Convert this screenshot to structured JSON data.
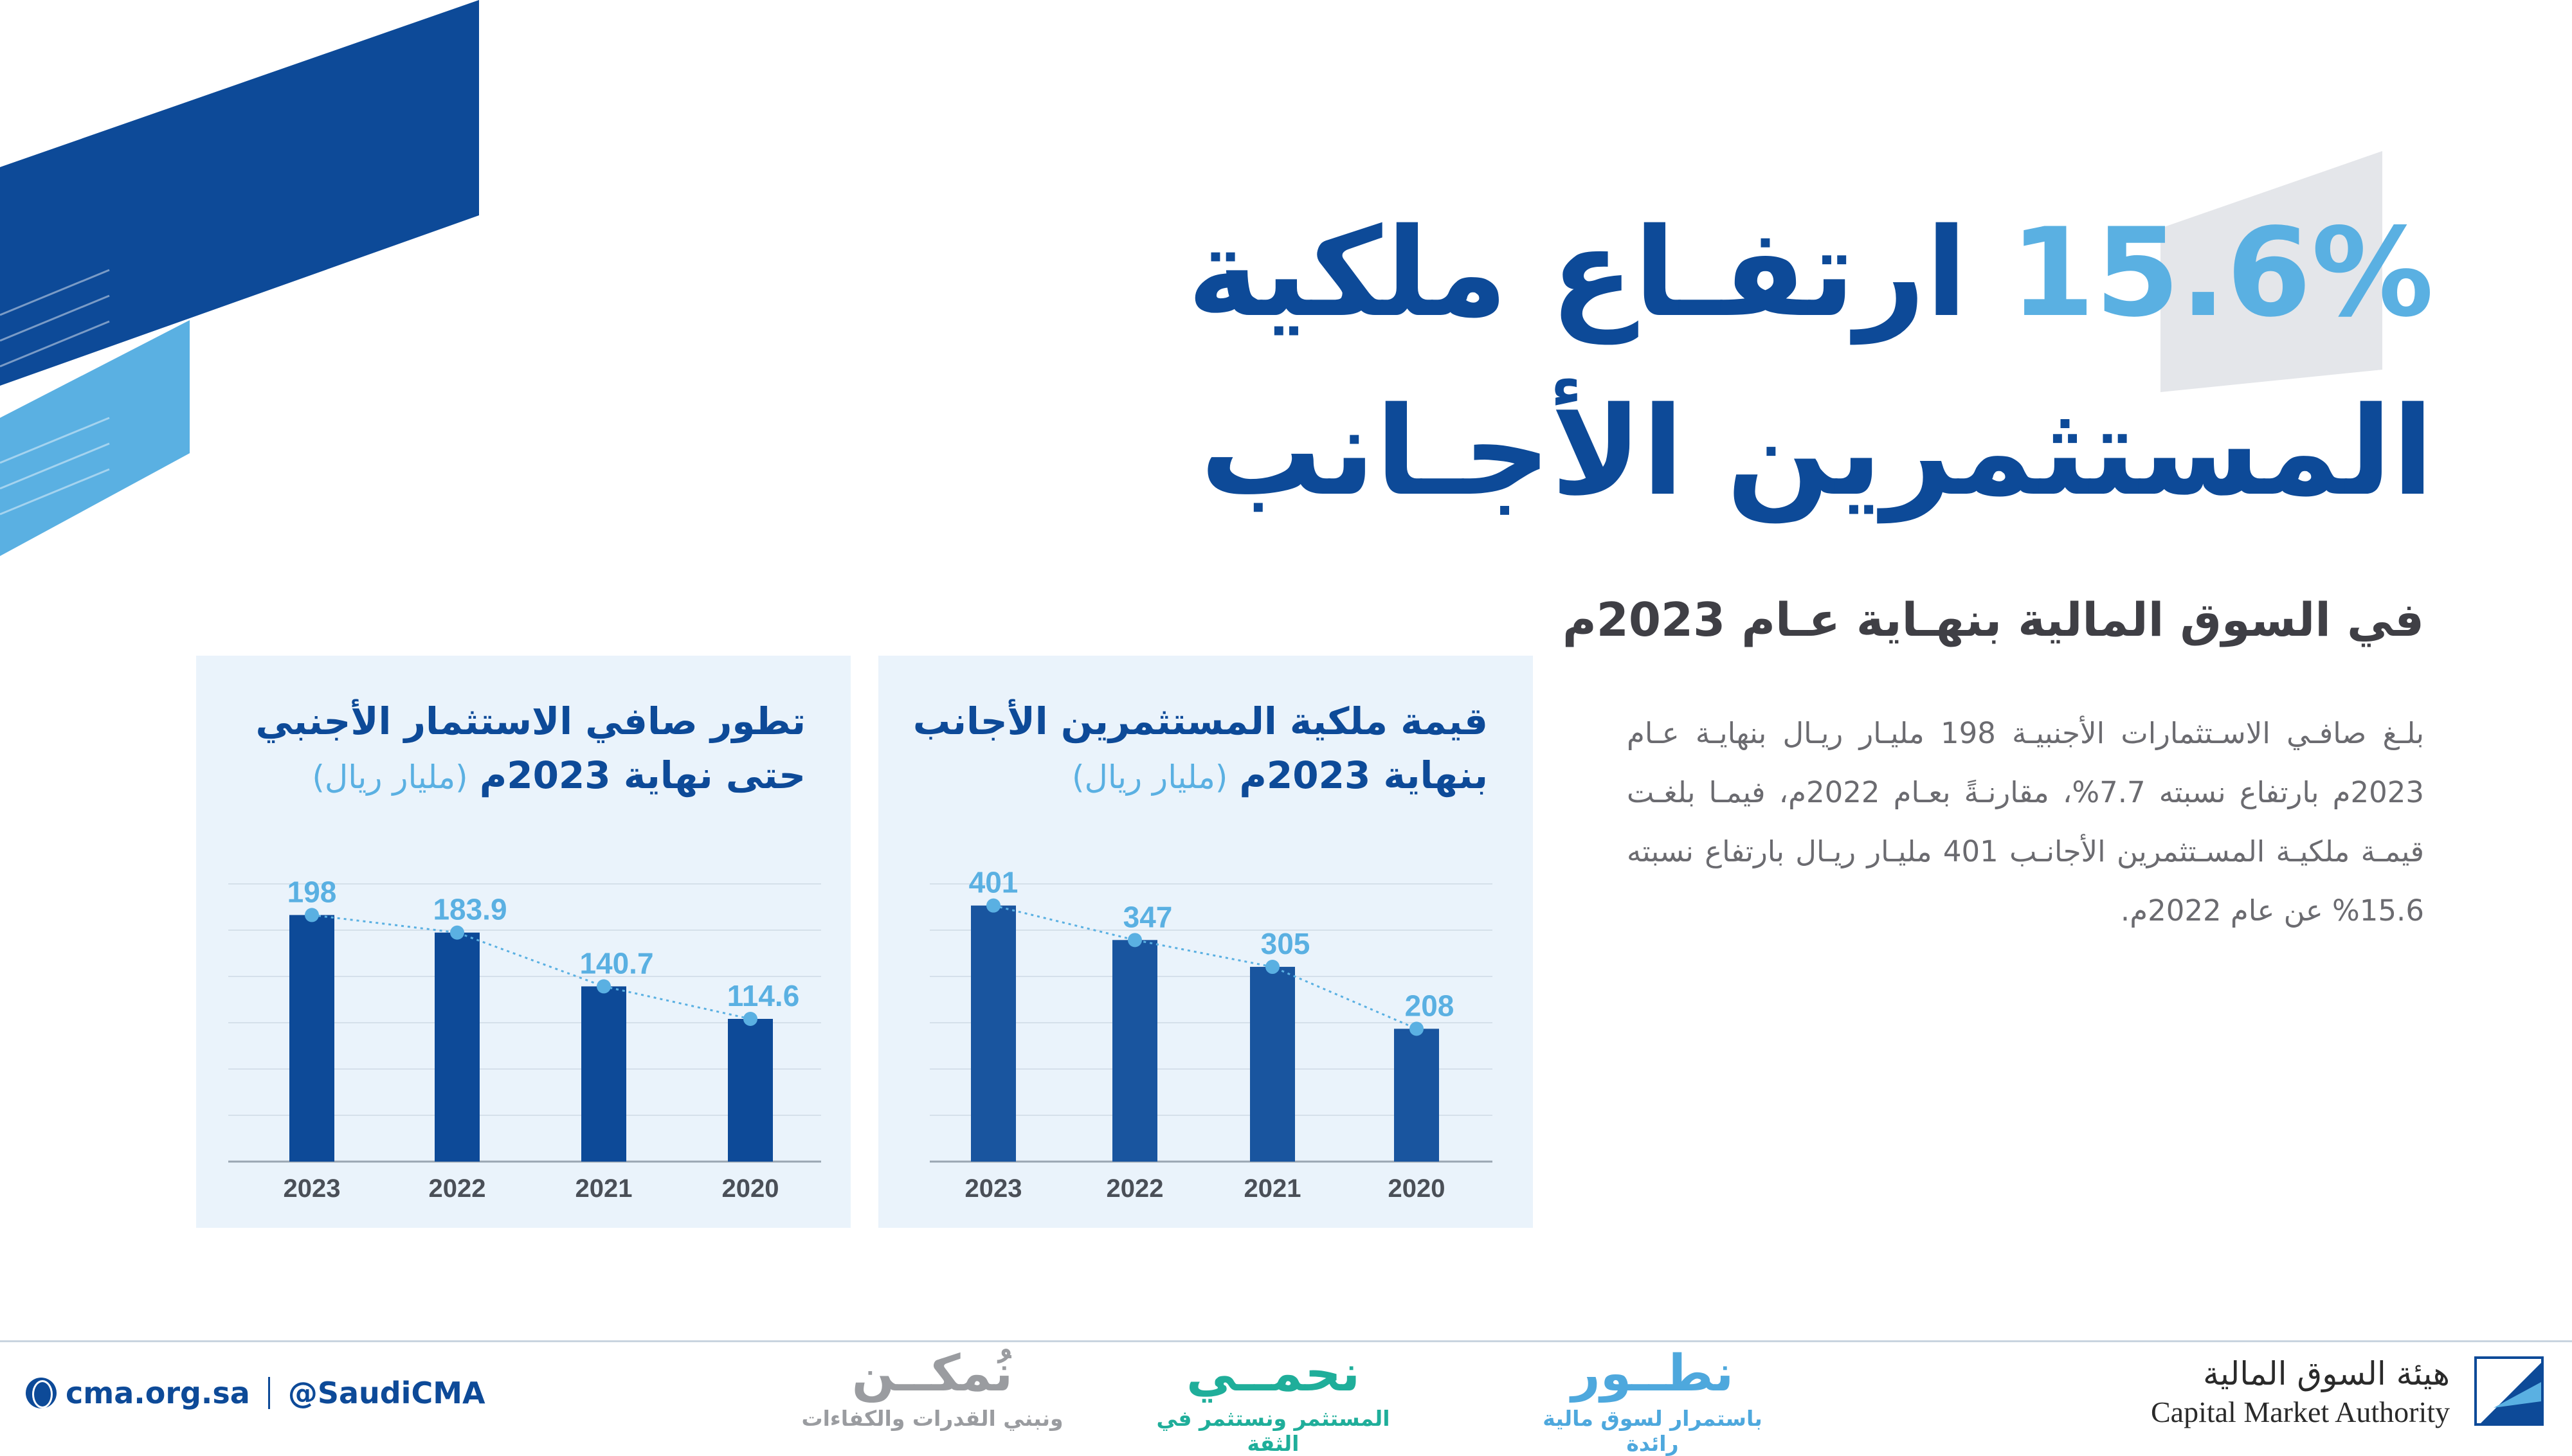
{
  "colors": {
    "navy": "#0d4a98",
    "bar_b": "#19559f",
    "light_blue": "#5ab0e2",
    "panel_bg": "#eaf3fb",
    "green": "#1fae9a",
    "gray": "#9a9ca0"
  },
  "header": {
    "title_pct": "15.6%",
    "title_rest": "ارتفـاع ملكية",
    "title_line2": "المستثمرين الأجـانب",
    "subtitle": "في السوق المالية بنهـاية عـام 2023م"
  },
  "body": {
    "paragraph": "بلـغ صافـي الاسـتثمارات الأجنبيـة 198 مليـار ريـال بنهايـة عـام 2023م بارتفاع نسبته 7.7%، مقارنـةً بعـام 2022م، فيمـا بلغـت قيمـة ملكيـة المسـتثمرين الأجانـب 401 مليـار ريـال بارتفاع نسبته 15.6% عن عام 2022م."
  },
  "chart_data": [
    {
      "type": "bar",
      "title_line1": "قيمة ملكية المستثمرين الأجانب",
      "title_line2": "بنهاية 2023م",
      "unit": "(مليار ريال)",
      "categories": [
        "2023",
        "2022",
        "2021",
        "2020"
      ],
      "values": [
        401,
        347,
        305,
        208
      ],
      "labels": [
        "401",
        "347",
        "305",
        "208"
      ],
      "ylim": [
        0,
        450
      ],
      "grid": true,
      "trend_line": true
    },
    {
      "type": "bar",
      "title_line1": "تطور صافي الاستثمار الأجنبي",
      "title_line2": "حتى نهاية 2023م",
      "unit": "(مليار ريال)",
      "categories": [
        "2023",
        "2022",
        "2021",
        "2020"
      ],
      "values": [
        198,
        183.9,
        140.7,
        114.6
      ],
      "labels": [
        "198",
        "183.9",
        "140.7",
        "114.6"
      ],
      "ylim": [
        0,
        223
      ],
      "grid": true,
      "trend_line": true
    }
  ],
  "footer": {
    "website": "cma.org.sa",
    "handle": "@SaudiCMA",
    "slogans": [
      {
        "big": "نطــور",
        "small": "باستمرار لسوق مالية رائدة"
      },
      {
        "big": "نحمــي",
        "small": "المستثمر ونستثمر في الثقة"
      },
      {
        "big": "نُمكــن",
        "small": "ونبني القدرات والكفاءات"
      }
    ],
    "org_ar": "هيئة السوق المالية",
    "org_en": "Capital Market Authority"
  }
}
